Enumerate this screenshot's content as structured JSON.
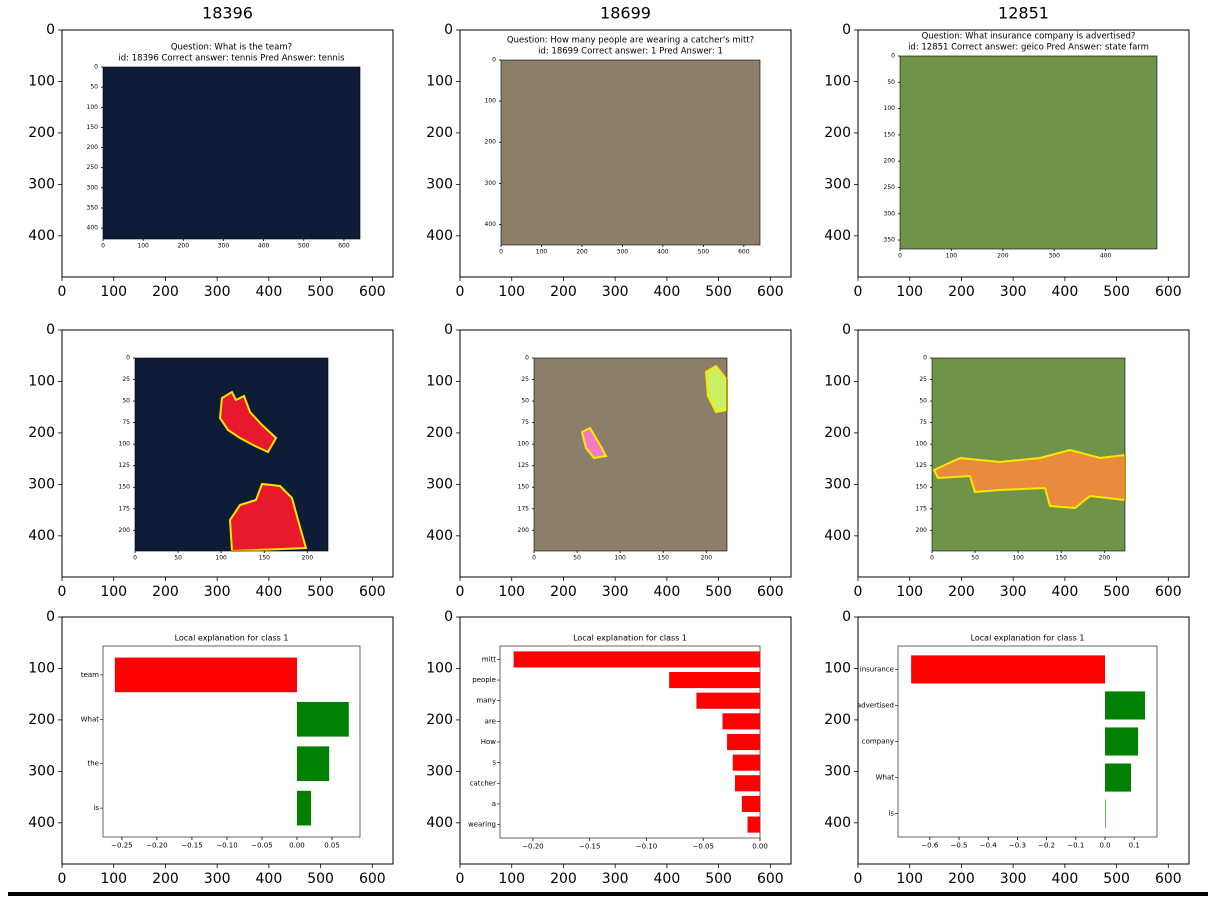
{
  "chart_data": [
    {
      "type": "image",
      "title": "18396",
      "xlim": [
        0,
        640
      ],
      "ylim": [
        480,
        0
      ],
      "xticks": [
        0,
        100,
        200,
        300,
        400,
        500,
        600
      ],
      "yticks": [
        0,
        100,
        200,
        300,
        400
      ],
      "inset": {
        "lines": [
          "Question: What is the team?",
          "id: 18396 Correct answer: tennis Pred Answer: tennis"
        ],
        "xlim": [
          0,
          640
        ],
        "ylim": [
          427,
          0
        ],
        "xticks": [
          0,
          100,
          200,
          300,
          400,
          500,
          600
        ],
        "yticks": [
          0,
          50,
          100,
          150,
          200,
          250,
          300,
          350,
          400
        ]
      }
    },
    {
      "type": "image",
      "title": "18699",
      "xlim": [
        0,
        640
      ],
      "ylim": [
        480,
        0
      ],
      "xticks": [
        0,
        100,
        200,
        300,
        400,
        500,
        600
      ],
      "yticks": [
        0,
        100,
        200,
        300,
        400
      ],
      "inset": {
        "lines": [
          "Question: How many people are wearing a catcher's mitt?",
          "id: 18699 Correct answer: 1 Pred Answer: 1"
        ],
        "xlim": [
          0,
          640
        ],
        "ylim": [
          450,
          0
        ],
        "xticks": [
          0,
          100,
          200,
          300,
          400,
          500,
          600
        ],
        "yticks": [
          0,
          100,
          200,
          300,
          400
        ]
      }
    },
    {
      "type": "image",
      "title": "12851",
      "xlim": [
        0,
        640
      ],
      "ylim": [
        480,
        0
      ],
      "xticks": [
        0,
        100,
        200,
        300,
        400,
        500,
        600
      ],
      "yticks": [
        0,
        100,
        200,
        300,
        400
      ],
      "inset": {
        "lines": [
          "Question: What insurance company is advertised?",
          "id: 12851 Correct answer: geico Pred Answer: state farm"
        ],
        "xlim": [
          0,
          500
        ],
        "ylim": [
          367,
          0
        ],
        "xticks": [
          0,
          100,
          200,
          300,
          400
        ],
        "yticks": [
          0,
          50,
          100,
          150,
          200,
          250,
          300,
          350
        ]
      }
    },
    {
      "type": "image",
      "xlim": [
        0,
        640
      ],
      "ylim": [
        480,
        0
      ],
      "xticks": [
        0,
        100,
        200,
        300,
        400,
        500,
        600
      ],
      "yticks": [
        0,
        100,
        200,
        300,
        400
      ],
      "inset": {
        "xlim": [
          0,
          224
        ],
        "ylim": [
          224,
          0
        ],
        "xticks": [
          0,
          50,
          100,
          150,
          200
        ],
        "yticks": [
          0,
          25,
          50,
          75,
          100,
          125,
          150,
          175,
          200
        ]
      }
    },
    {
      "type": "image",
      "xlim": [
        0,
        640
      ],
      "ylim": [
        480,
        0
      ],
      "xticks": [
        0,
        100,
        200,
        300,
        400,
        500,
        600
      ],
      "yticks": [
        0,
        100,
        200,
        300,
        400
      ],
      "inset": {
        "xlim": [
          0,
          224
        ],
        "ylim": [
          224,
          0
        ],
        "xticks": [
          0,
          50,
          100,
          150,
          200
        ],
        "yticks": [
          0,
          25,
          50,
          75,
          100,
          125,
          150,
          175,
          200
        ]
      }
    },
    {
      "type": "image",
      "xlim": [
        0,
        640
      ],
      "ylim": [
        480,
        0
      ],
      "xticks": [
        0,
        100,
        200,
        300,
        400,
        500,
        600
      ],
      "yticks": [
        0,
        100,
        200,
        300,
        400
      ],
      "inset": {
        "xlim": [
          0,
          224
        ],
        "ylim": [
          224,
          0
        ],
        "xticks": [
          0,
          50,
          100,
          150,
          200
        ],
        "yticks": [
          0,
          25,
          50,
          75,
          100,
          125,
          150,
          175,
          200
        ]
      }
    },
    {
      "type": "image",
      "xlim": [
        0,
        640
      ],
      "ylim": [
        480,
        0
      ],
      "xticks": [
        0,
        100,
        200,
        300,
        400,
        500,
        600
      ],
      "yticks": [
        0,
        100,
        200,
        300,
        400
      ],
      "inset": {
        "type": "barh",
        "title": "Local explanation for class 1",
        "categories": [
          "team",
          "What",
          "the",
          "is"
        ],
        "values": [
          -0.26,
          0.074,
          0.046,
          0.02
        ],
        "xlim": [
          -0.277,
          0.09
        ],
        "xticks": [
          {
            "value": -0.25,
            "label": "−0.25"
          },
          {
            "value": -0.2,
            "label": "−0.20"
          },
          {
            "value": -0.15,
            "label": "−0.15"
          },
          {
            "value": -0.1,
            "label": "−0.10"
          },
          {
            "value": -0.05,
            "label": "−0.05"
          },
          {
            "value": 0,
            "label": "0.00"
          },
          {
            "value": 0.05,
            "label": "0.05"
          }
        ],
        "negative_color": "#ff0000",
        "positive_color": "#008000"
      }
    },
    {
      "type": "image",
      "xlim": [
        0,
        640
      ],
      "ylim": [
        480,
        0
      ],
      "xticks": [
        0,
        100,
        200,
        300,
        400,
        500,
        600
      ],
      "yticks": [
        0,
        100,
        200,
        300,
        400
      ],
      "inset": {
        "type": "barh",
        "title": "Local explanation for class 1",
        "categories": [
          "mitt",
          "people",
          "many",
          "are",
          "How",
          "s",
          "catcher",
          "a",
          "wearing"
        ],
        "values": [
          -0.217,
          -0.08,
          -0.056,
          -0.033,
          -0.029,
          -0.024,
          -0.022,
          -0.016,
          -0.011
        ],
        "xlim": [
          -0.229,
          0.0
        ],
        "xticks": [
          {
            "value": -0.2,
            "label": "−0.20"
          },
          {
            "value": -0.15,
            "label": "−0.15"
          },
          {
            "value": -0.1,
            "label": "−0.10"
          },
          {
            "value": -0.05,
            "label": "−0.05"
          },
          {
            "value": 0,
            "label": "0.00"
          }
        ],
        "negative_color": "#ff0000",
        "positive_color": "#008000"
      }
    },
    {
      "type": "image",
      "xlim": [
        0,
        640
      ],
      "ylim": [
        480,
        0
      ],
      "xticks": [
        0,
        100,
        200,
        300,
        400,
        500,
        600
      ],
      "yticks": [
        0,
        100,
        200,
        300,
        400
      ],
      "inset": {
        "type": "barh",
        "title": "Local explanation for class 1",
        "categories": [
          "insurance",
          "advertised",
          "company",
          "What",
          "is"
        ],
        "values": [
          -0.664,
          0.137,
          0.113,
          0.089,
          0.002
        ],
        "xlim": [
          -0.709,
          0.178
        ],
        "xticks": [
          {
            "value": -0.6,
            "label": "−0.6"
          },
          {
            "value": -0.5,
            "label": "−0.5"
          },
          {
            "value": -0.4,
            "label": "−0.4"
          },
          {
            "value": -0.3,
            "label": "−0.3"
          },
          {
            "value": -0.2,
            "label": "−0.2"
          },
          {
            "value": -0.1,
            "label": "−0.1"
          },
          {
            "value": 0,
            "label": "0.0"
          },
          {
            "value": 0.1,
            "label": "0.1"
          }
        ],
        "negative_color": "#ff0000",
        "positive_color": "#008000"
      }
    }
  ]
}
